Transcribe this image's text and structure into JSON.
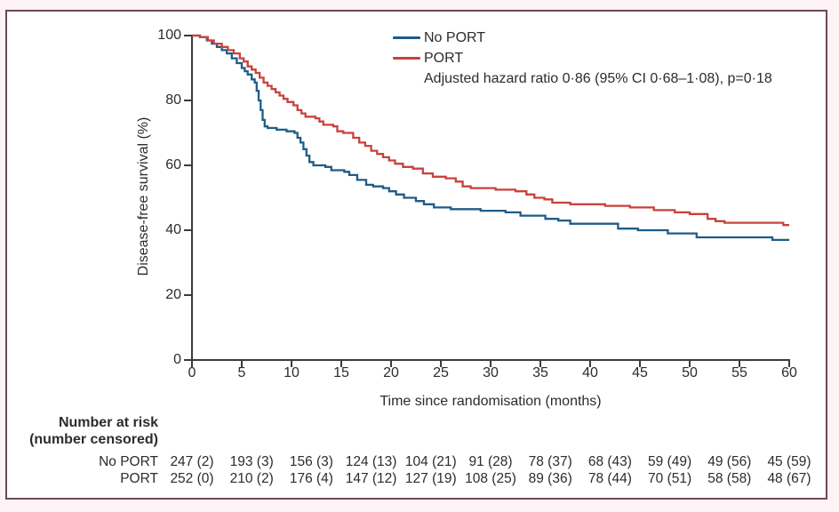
{
  "figure": {
    "border_color": "#6f4557",
    "outer_bg": "#fdf3f7",
    "text_color": "#2e2c2a",
    "axis_color": "#3d3a37"
  },
  "chart_data": {
    "type": "line",
    "subtype": "kaplan-meier-step",
    "title": "",
    "xlabel": "Time since randomisation (months)",
    "ylabel": "Disease-free survival (%)",
    "xlim": [
      0,
      60
    ],
    "ylim": [
      0,
      100
    ],
    "xticks": [
      0,
      5,
      10,
      15,
      20,
      25,
      30,
      35,
      40,
      45,
      50,
      55,
      60
    ],
    "yticks": [
      0,
      20,
      40,
      60,
      80,
      100
    ],
    "grid": false,
    "legend_position": "top-center-right",
    "annotation": "Adjusted hazard ratio 0·86 (95% CI 0·68–1·08), p=0·18",
    "legend": [
      {
        "label": "No PORT",
        "color": "#1f5c87"
      },
      {
        "label": "PORT",
        "color": "#c8423c"
      }
    ],
    "series": [
      {
        "name": "No PORT",
        "color": "#1f5c87",
        "points": [
          [
            0,
            100
          ],
          [
            0.8,
            99.5
          ],
          [
            1.5,
            98.5
          ],
          [
            2,
            97.5
          ],
          [
            2.5,
            96.5
          ],
          [
            3,
            95.5
          ],
          [
            3.5,
            94.5
          ],
          [
            4,
            93
          ],
          [
            4.5,
            91.5
          ],
          [
            5,
            90
          ],
          [
            5.3,
            89
          ],
          [
            5.6,
            88
          ],
          [
            6,
            86.5
          ],
          [
            6.3,
            85.5
          ],
          [
            6.5,
            83
          ],
          [
            6.7,
            80
          ],
          [
            6.9,
            77
          ],
          [
            7.1,
            74
          ],
          [
            7.3,
            72
          ],
          [
            7.6,
            71.5
          ],
          [
            8.5,
            71
          ],
          [
            9.5,
            70.5
          ],
          [
            10.3,
            70
          ],
          [
            10.6,
            68.5
          ],
          [
            10.9,
            67
          ],
          [
            11.2,
            65
          ],
          [
            11.5,
            63
          ],
          [
            11.8,
            61
          ],
          [
            12.2,
            60
          ],
          [
            13.4,
            59.5
          ],
          [
            14,
            58.5
          ],
          [
            15.3,
            58
          ],
          [
            15.8,
            57
          ],
          [
            16.6,
            55.5
          ],
          [
            17.5,
            54
          ],
          [
            18.2,
            53.5
          ],
          [
            19.2,
            53
          ],
          [
            19.8,
            52
          ],
          [
            20.5,
            51
          ],
          [
            21.3,
            50
          ],
          [
            22.5,
            49
          ],
          [
            23.3,
            48
          ],
          [
            24.3,
            47
          ],
          [
            26,
            46.5
          ],
          [
            29,
            46
          ],
          [
            31.5,
            45.5
          ],
          [
            33,
            44.5
          ],
          [
            35.5,
            43.5
          ],
          [
            36.8,
            43
          ],
          [
            38,
            42
          ],
          [
            42.8,
            40.5
          ],
          [
            44.8,
            40
          ],
          [
            47.8,
            39
          ],
          [
            50.7,
            37.8
          ],
          [
            58.3,
            37
          ],
          [
            60,
            37
          ]
        ]
      },
      {
        "name": "PORT",
        "color": "#c8423c",
        "points": [
          [
            0,
            100
          ],
          [
            0.8,
            99.5
          ],
          [
            1.6,
            98.5
          ],
          [
            2.2,
            97.5
          ],
          [
            3,
            96.5
          ],
          [
            3.6,
            95.5
          ],
          [
            4.2,
            94.5
          ],
          [
            4.8,
            93
          ],
          [
            5.2,
            92
          ],
          [
            5.6,
            90.5
          ],
          [
            6,
            89.5
          ],
          [
            6.4,
            88.5
          ],
          [
            6.8,
            87
          ],
          [
            7.2,
            85.5
          ],
          [
            7.6,
            84.5
          ],
          [
            8,
            83.5
          ],
          [
            8.4,
            82.5
          ],
          [
            8.8,
            81.5
          ],
          [
            9.2,
            80.5
          ],
          [
            9.6,
            79.5
          ],
          [
            10.2,
            78.5
          ],
          [
            10.6,
            77
          ],
          [
            11,
            76
          ],
          [
            11.4,
            75
          ],
          [
            12.4,
            74.5
          ],
          [
            12.8,
            73.5
          ],
          [
            13.2,
            72.5
          ],
          [
            14.2,
            72
          ],
          [
            14.6,
            70.5
          ],
          [
            15.2,
            70
          ],
          [
            16.2,
            68.5
          ],
          [
            16.8,
            67
          ],
          [
            17.4,
            66
          ],
          [
            18,
            64.5
          ],
          [
            18.6,
            63.5
          ],
          [
            19.2,
            62.5
          ],
          [
            19.8,
            61.5
          ],
          [
            20.4,
            60.5
          ],
          [
            21.2,
            59.5
          ],
          [
            22.2,
            59
          ],
          [
            23.2,
            57.5
          ],
          [
            24.2,
            56.5
          ],
          [
            25.5,
            56
          ],
          [
            26.5,
            55
          ],
          [
            27.2,
            53.5
          ],
          [
            28,
            53
          ],
          [
            30.5,
            52.5
          ],
          [
            32.5,
            52
          ],
          [
            33.6,
            51
          ],
          [
            34.4,
            50
          ],
          [
            35.4,
            49.5
          ],
          [
            36.2,
            48.5
          ],
          [
            38,
            48
          ],
          [
            41.5,
            47.5
          ],
          [
            44,
            47
          ],
          [
            46.4,
            46.2
          ],
          [
            48.5,
            45.5
          ],
          [
            50,
            45
          ],
          [
            51.8,
            43.5
          ],
          [
            52.6,
            42.8
          ],
          [
            53.5,
            42.3
          ],
          [
            59.4,
            41.6
          ],
          [
            60,
            41.6
          ]
        ]
      }
    ],
    "number_at_risk": {
      "header_line1": "Number at risk",
      "header_line2": "(number censored)",
      "times": [
        0,
        6,
        12,
        18,
        24,
        30,
        36,
        42,
        48,
        54,
        60
      ],
      "rows": [
        {
          "label": "No PORT",
          "values": [
            "247 (2)",
            "193 (3)",
            "156 (3)",
            "124 (13)",
            "104 (21)",
            "91 (28)",
            "78 (37)",
            "68 (43)",
            "59 (49)",
            "49 (56)",
            "45 (59)"
          ]
        },
        {
          "label": "PORT",
          "values": [
            "252 (0)",
            "210 (2)",
            "176 (4)",
            "147 (12)",
            "127 (19)",
            "108 (25)",
            "89 (36)",
            "78 (44)",
            "70 (51)",
            "58 (58)",
            "48 (67)"
          ]
        }
      ]
    }
  }
}
